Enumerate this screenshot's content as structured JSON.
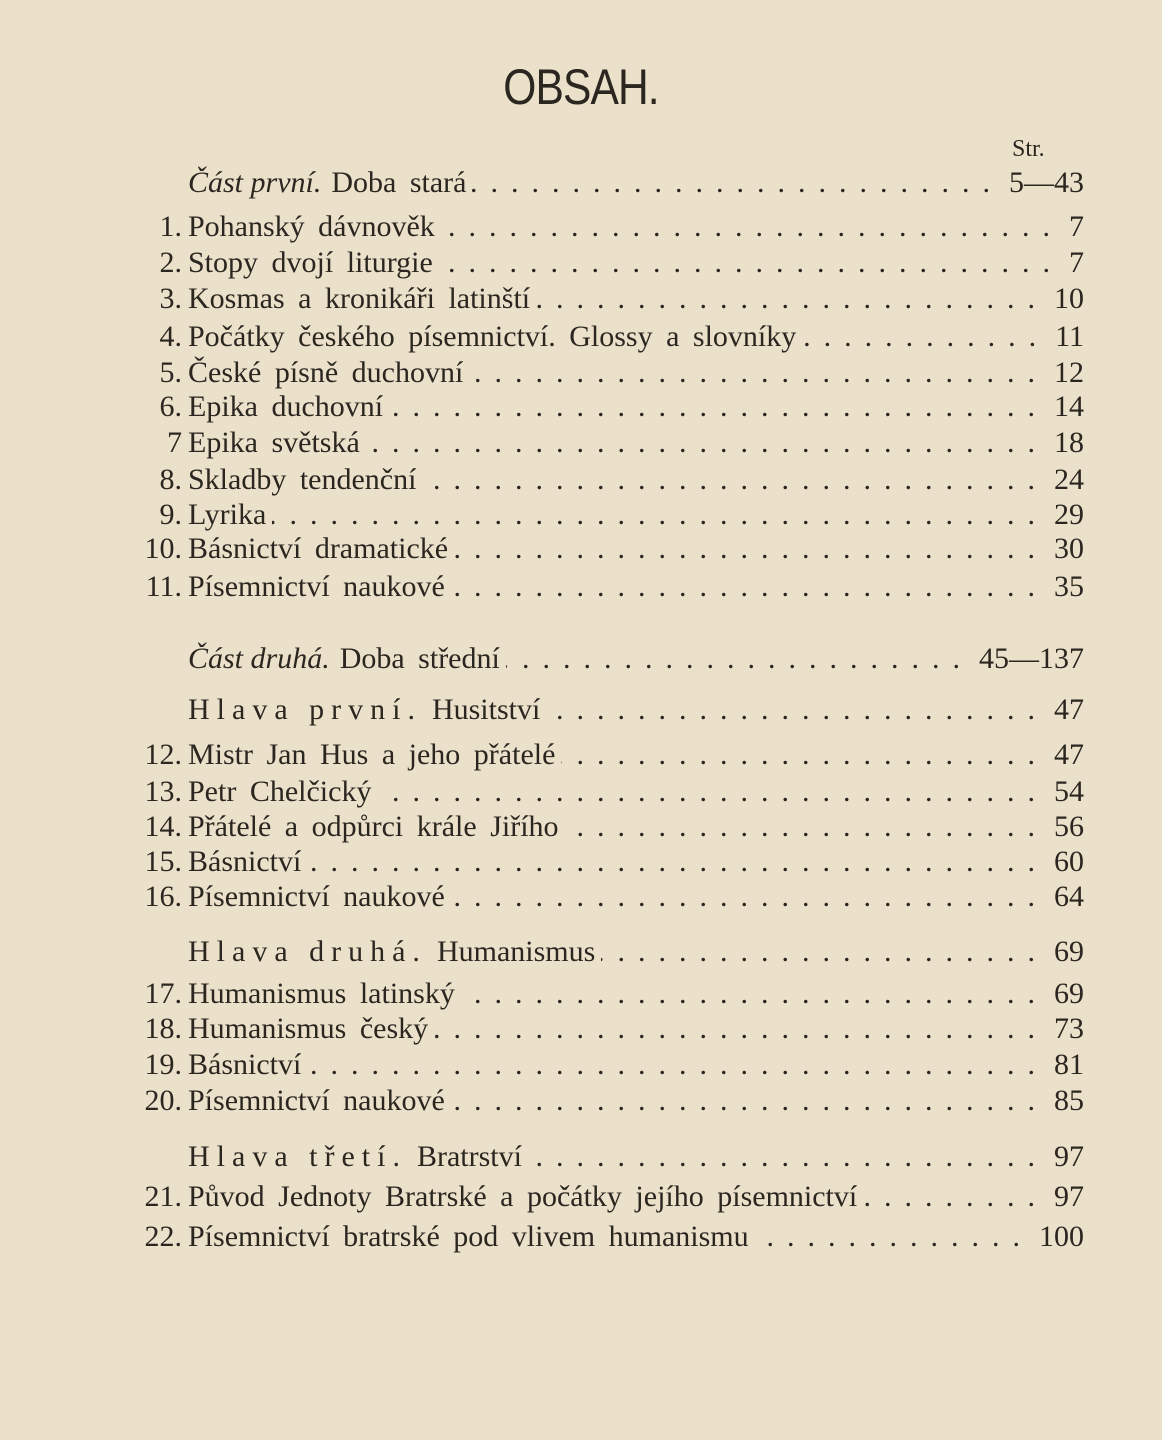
{
  "title": "OBSAH.",
  "page_column_label": "Str.",
  "entries": [
    {
      "kind": "part",
      "label": "Část první.",
      "text": "Doba stará",
      "page": "5—43"
    },
    {
      "kind": "item",
      "num": "1.",
      "text": "Pohanský dávnověk",
      "page": "7"
    },
    {
      "kind": "item",
      "num": "2.",
      "text": "Stopy dvojí liturgie",
      "page": "7"
    },
    {
      "kind": "item",
      "num": "3.",
      "text": "Kosmas a kronikáři latinští",
      "page": "10"
    },
    {
      "kind": "item",
      "num": "4.",
      "text": "Počátky českého písemnictví. Glossy a slovníky",
      "page": "11"
    },
    {
      "kind": "item",
      "num": "5.",
      "text": "České písně duchovní",
      "page": "12"
    },
    {
      "kind": "item",
      "num": "6.",
      "text": "Epika duchovní",
      "page": "14"
    },
    {
      "kind": "item",
      "num": "7",
      "text": "Epika světská",
      "page": "18"
    },
    {
      "kind": "item",
      "num": "8.",
      "text": "Skladby tendenční",
      "page": "24"
    },
    {
      "kind": "item",
      "num": "9.",
      "text": "Lyrika",
      "page": "29"
    },
    {
      "kind": "item",
      "num": "10.",
      "text": "Básnictví dramatické",
      "page": "30"
    },
    {
      "kind": "item",
      "num": "11.",
      "text": "Písemnictví naukové",
      "page": "35"
    },
    {
      "kind": "part",
      "label": "Část druhá.",
      "text": "Doba střední",
      "page": "45—137"
    },
    {
      "kind": "chapter",
      "label": "Hlava první.",
      "text": "Husitství",
      "page": "47"
    },
    {
      "kind": "item",
      "num": "12.",
      "text": "Mistr Jan Hus a jeho přátelé",
      "page": "47"
    },
    {
      "kind": "item",
      "num": "13.",
      "text": "Petr Chelčický",
      "page": "54"
    },
    {
      "kind": "item",
      "num": "14.",
      "text": "Přátelé a odpůrci krále Jiřího",
      "page": "56"
    },
    {
      "kind": "item",
      "num": "15.",
      "text": "Básnictví",
      "page": "60"
    },
    {
      "kind": "item",
      "num": "16.",
      "text": "Písemnictví naukové",
      "page": "64"
    },
    {
      "kind": "chapter",
      "label": "Hlava druhá.",
      "text": "Humanismus",
      "page": "69"
    },
    {
      "kind": "item",
      "num": "17.",
      "text": "Humanismus latinský",
      "page": "69"
    },
    {
      "kind": "item",
      "num": "18.",
      "text": "Humanismus český",
      "page": "73"
    },
    {
      "kind": "item",
      "num": "19.",
      "text": "Básnictví",
      "page": "81"
    },
    {
      "kind": "item",
      "num": "20.",
      "text": "Písemnictví naukové",
      "page": "85"
    },
    {
      "kind": "chapter",
      "label": "Hlava třetí.",
      "text": "Bratrství",
      "page": "97"
    },
    {
      "kind": "item",
      "num": "21.",
      "text": "Původ Jednoty Bratrské a počátky jejího písemnictví",
      "page": "97"
    },
    {
      "kind": "item",
      "num": "22.",
      "text": "Písemnictví bratrské pod vlivem humanismu",
      "page": "100"
    }
  ]
}
